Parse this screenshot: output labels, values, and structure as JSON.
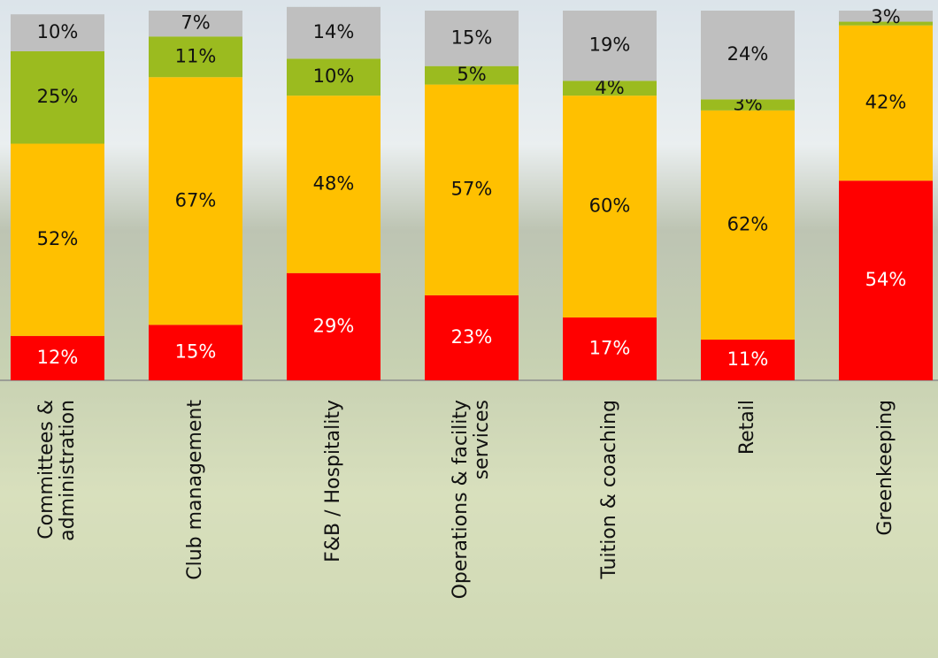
{
  "chart_data": {
    "type": "stacked-bar",
    "categories": [
      "Committees & administration",
      "Club management",
      "F&B / Hospitality",
      "Operations & facility services",
      "Tuition & coaching",
      "Retail",
      "Greenkeeping"
    ],
    "ylim": [
      0,
      100
    ],
    "series": [
      {
        "color": "#ff0000",
        "values": [
          12,
          15,
          29,
          23,
          17,
          11,
          54
        ],
        "value_labels": [
          "12%",
          "15%",
          "29%",
          "23%",
          "17%",
          "11%",
          "54%"
        ]
      },
      {
        "color": "#ffc000",
        "values": [
          52,
          67,
          48,
          57,
          60,
          62,
          42
        ],
        "value_labels": [
          "52%",
          "67%",
          "48%",
          "57%",
          "60%",
          "62%",
          "42%"
        ]
      },
      {
        "color": "#9bbb1f",
        "values": [
          25,
          11,
          10,
          5,
          4,
          3,
          1
        ],
        "value_labels": [
          "25%",
          "11%",
          "10%",
          "5%",
          "4%",
          "3%",
          null
        ]
      },
      {
        "color": "#bfbfbf",
        "values": [
          10,
          7,
          14,
          15,
          19,
          24,
          3
        ],
        "value_labels": [
          "10%",
          "7%",
          "14%",
          "15%",
          "19%",
          "24%",
          "3%"
        ]
      }
    ]
  }
}
